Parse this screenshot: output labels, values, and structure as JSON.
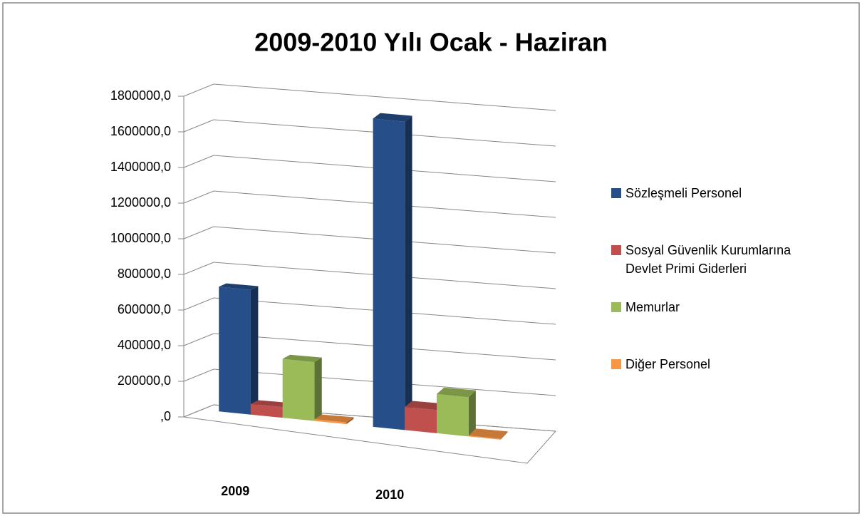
{
  "chart_data": {
    "type": "bar3d",
    "title": "2009-2010 Yılı Ocak - Haziran",
    "categories": [
      "2009",
      "2010"
    ],
    "series": [
      {
        "name": "Sözleşmeli Personel",
        "color": "#264f8a",
        "values": [
          700000,
          1730000
        ]
      },
      {
        "name": "Sosyal Güvenlik Kurumlarına Devlet Primi Giderleri",
        "color": "#c0504d",
        "values": [
          60000,
          130000
        ]
      },
      {
        "name": "Memurlar",
        "color": "#9bbb59",
        "values": [
          330000,
          220000
        ]
      },
      {
        "name": "Diğer Personel",
        "color": "#f79646",
        "values": [
          10000,
          5000
        ]
      }
    ],
    "ylim": [
      0,
      1800000
    ],
    "yticks": [
      {
        "value": 0,
        "label": ",0"
      },
      {
        "value": 200000,
        "label": "200000,0"
      },
      {
        "value": 400000,
        "label": "400000,0"
      },
      {
        "value": 600000,
        "label": "600000,0"
      },
      {
        "value": 800000,
        "label": "800000,0"
      },
      {
        "value": 1000000,
        "label": "1000000,0"
      },
      {
        "value": 1200000,
        "label": "1200000,0"
      },
      {
        "value": 1400000,
        "label": "1400000,0"
      },
      {
        "value": 1600000,
        "label": "1600000,0"
      },
      {
        "value": 1800000,
        "label": "1800000,0"
      }
    ],
    "grid": true,
    "legend": "right"
  }
}
